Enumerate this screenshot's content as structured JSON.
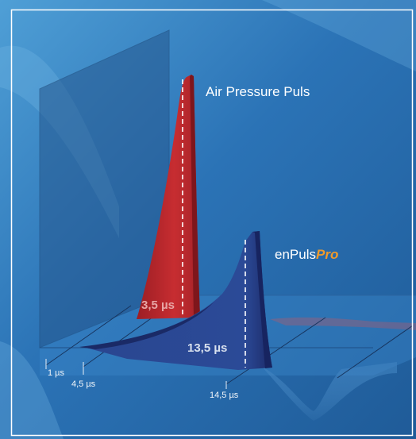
{
  "series": {
    "air": {
      "label": "Air Pressure Puls",
      "duration": "3,5 µs",
      "color": "#c22b2f"
    },
    "enpuls": {
      "label_prefix": "enPuls",
      "label_suffix": "Pro",
      "duration": "13,5 µs",
      "color": "#24357a",
      "suffix_color": "#f09a2a"
    }
  },
  "axis": {
    "ticks": [
      "1 µs",
      "4,5 µs",
      "14,5 µs"
    ]
  },
  "colors": {
    "background": "#2c6fb0",
    "frame": "#ffffff"
  }
}
